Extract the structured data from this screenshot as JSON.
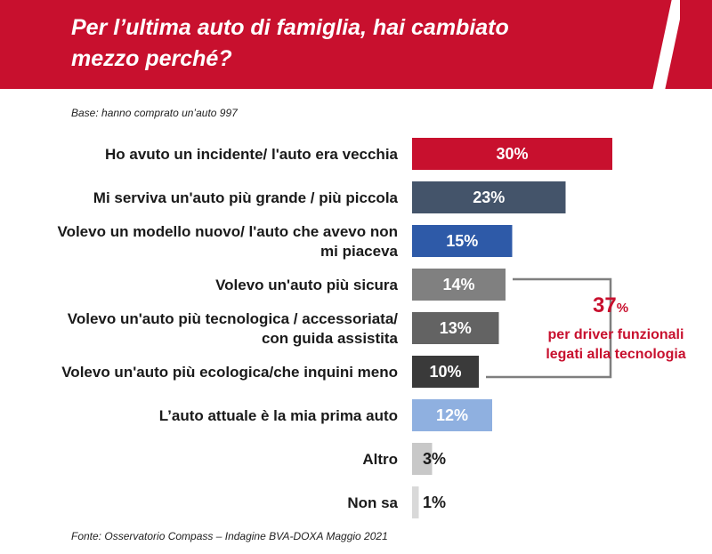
{
  "header": {
    "title": "Per l’ultima auto di famiglia, hai cambiato\nmezzo perché?"
  },
  "base_note": "Base: hanno comprato un’auto  997",
  "source": "Fonte: Osservatorio Compass – Indagine BVA-DOXA Maggio 2021",
  "callout": {
    "value": "37",
    "unit": "%",
    "text": "per driver funzionali\nlegati alla tecnologia",
    "bracket_color": "#7f7f7f"
  },
  "chart_data": {
    "type": "bar",
    "orientation": "horizontal",
    "categories": [
      [
        "Ho avuto un incidente/ l'auto era vecchia"
      ],
      [
        "Mi serviva un'auto più grande / più piccola"
      ],
      [
        "Volevo un modello nuovo/ l'auto che avevo non",
        "mi piaceva"
      ],
      [
        "Volevo un'auto più sicura"
      ],
      [
        "Volevo un'auto più tecnologica / accessoriata/",
        "con guida assistita"
      ],
      [
        "Volevo un'auto più ecologica/che inquini meno"
      ],
      [
        "L’auto attuale è la mia prima auto"
      ],
      [
        "Altro"
      ],
      [
        "Non sa"
      ]
    ],
    "values": [
      30,
      23,
      15,
      14,
      13,
      10,
      12,
      3,
      1
    ],
    "labels": [
      "30%",
      "23%",
      "15%",
      "14%",
      "13%",
      "10%",
      "12%",
      "3%",
      "1%"
    ],
    "colors": [
      "#c8102e",
      "#44546a",
      "#2e5aa8",
      "#808080",
      "#636363",
      "#3a3a3a",
      "#8fb0e0",
      "#c8c8c8",
      "#d9d9d9"
    ],
    "label_colors": [
      "#ffffff",
      "#ffffff",
      "#ffffff",
      "#ffffff",
      "#ffffff",
      "#ffffff",
      "#ffffff",
      "#1a1a1a",
      "#1a1a1a"
    ],
    "xlim": [
      0,
      30
    ],
    "grid": false,
    "legend": "none"
  }
}
